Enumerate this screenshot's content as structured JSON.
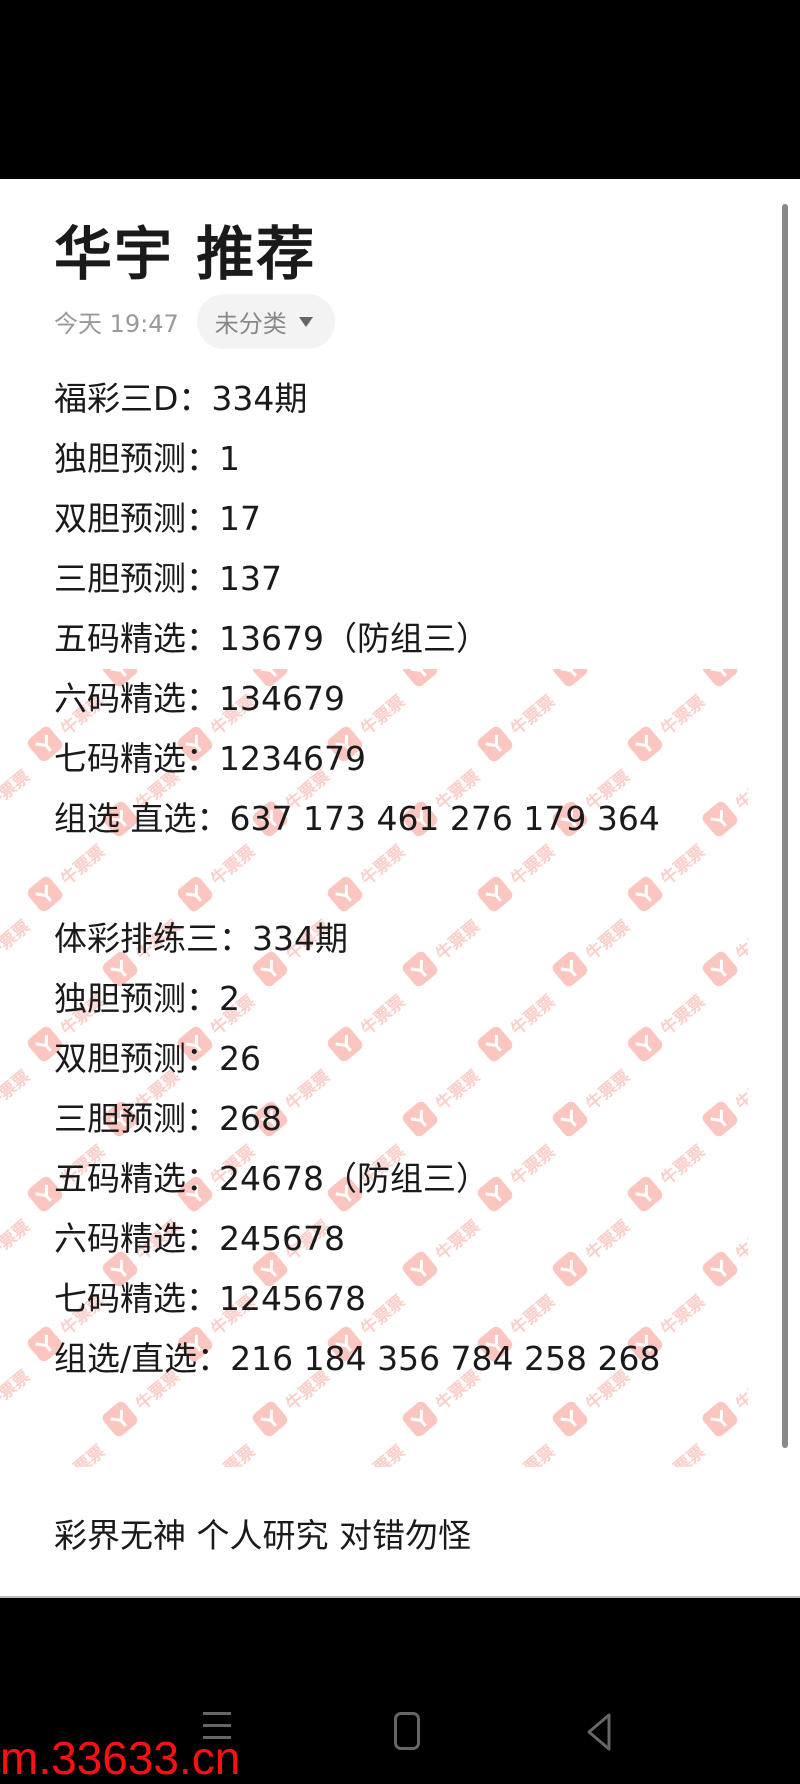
{
  "note": {
    "title": "华宇 推荐",
    "time": "今天 19:47",
    "category": "未分类",
    "category_icon": "triangle-down-icon"
  },
  "sections": [
    {
      "lines": [
        "福彩三D：334期",
        "独胆预测：1",
        "双胆预测：17",
        "三胆预测：137",
        "五码精选：13679（防组三）",
        "六码精选：134679",
        "七码精选：1234679",
        "组选 直选：637 173 461 276 179 364"
      ]
    },
    {
      "lines": [
        "体彩排练三：334期",
        "独胆预测：2",
        "双胆预测：26",
        "三胆预测：268",
        "五码精选：24678（防组三）",
        "六码精选：245678",
        "七码精选：1245678",
        "组选/直选：216 184 356 784 258 268"
      ]
    }
  ],
  "footer": "彩界无神 个人研究 对错勿怪",
  "watermark": {
    "text": "牛票票",
    "color": "#f26a5a"
  },
  "overlay_url": "m.33633.cn",
  "navbar": {
    "icons": [
      "menu-icon",
      "home-icon",
      "back-icon"
    ]
  }
}
